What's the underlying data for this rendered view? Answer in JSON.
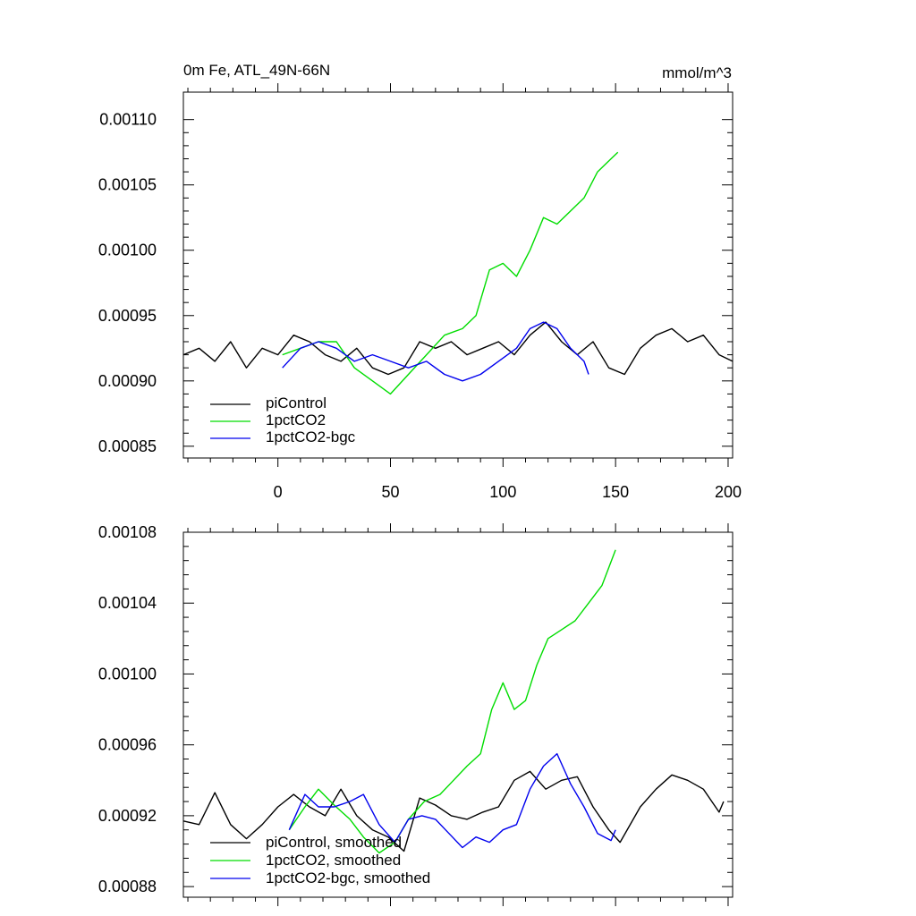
{
  "chart_data": [
    {
      "type": "line",
      "title": "0m Fe, ATL_49N-66N",
      "units": "mmol/m^3",
      "xlim": [
        -42,
        202
      ],
      "ylim": [
        0.000841,
        0.001121
      ],
      "x_ticks": [
        0,
        50,
        100,
        150,
        200
      ],
      "x_tick_labels": [
        "0",
        "50",
        "100",
        "150",
        "200"
      ],
      "y_ticks": [
        0.00085,
        0.0009,
        0.00095,
        0.001,
        0.00105,
        0.0011
      ],
      "y_tick_labels": [
        "0.00085",
        "0.00090",
        "0.00095",
        "0.00100",
        "0.00105",
        "0.00110"
      ],
      "legend": "bottom-left",
      "series": [
        {
          "name": "piControl",
          "color": "#000000",
          "x": [
            -42,
            -35,
            -28,
            -21,
            -14,
            -7,
            0,
            7,
            14,
            21,
            28,
            35,
            42,
            49,
            56,
            63,
            70,
            77,
            84,
            91,
            98,
            105,
            112,
            119,
            126,
            133,
            140,
            147,
            154,
            161,
            168,
            175,
            182,
            189,
            196,
            202
          ],
          "y": [
            0.00092,
            0.000925,
            0.000915,
            0.00093,
            0.00091,
            0.000925,
            0.00092,
            0.000935,
            0.00093,
            0.00092,
            0.000915,
            0.000925,
            0.00091,
            0.000905,
            0.00091,
            0.00093,
            0.000925,
            0.00093,
            0.00092,
            0.000925,
            0.00093,
            0.00092,
            0.000935,
            0.000945,
            0.00093,
            0.00092,
            0.00093,
            0.00091,
            0.000905,
            0.000925,
            0.000935,
            0.00094,
            0.00093,
            0.000935,
            0.00092,
            0.000915
          ]
        },
        {
          "name": "1pctCO2",
          "color": "#00dd00",
          "x": [
            2,
            10,
            18,
            26,
            34,
            42,
            50,
            58,
            66,
            74,
            82,
            88,
            94,
            100,
            106,
            112,
            118,
            124,
            130,
            136,
            142,
            148,
            151
          ],
          "y": [
            0.00092,
            0.000925,
            0.00093,
            0.00093,
            0.00091,
            0.0009,
            0.00089,
            0.000905,
            0.00092,
            0.000935,
            0.00094,
            0.00095,
            0.000985,
            0.00099,
            0.00098,
            0.001,
            0.001025,
            0.00102,
            0.00103,
            0.00104,
            0.00106,
            0.00107,
            0.001075
          ]
        },
        {
          "name": "1pctCO2-bgc",
          "color": "#0000ee",
          "x": [
            2,
            10,
            18,
            26,
            34,
            42,
            50,
            58,
            66,
            74,
            82,
            90,
            98,
            106,
            112,
            118,
            124,
            130,
            136,
            138
          ],
          "y": [
            0.00091,
            0.000925,
            0.00093,
            0.000925,
            0.000915,
            0.00092,
            0.000915,
            0.00091,
            0.000915,
            0.000905,
            0.0009,
            0.000905,
            0.000915,
            0.000925,
            0.00094,
            0.000945,
            0.00094,
            0.000925,
            0.000915,
            0.000905
          ]
        }
      ]
    },
    {
      "type": "line",
      "xlim": [
        -42,
        202
      ],
      "ylim": [
        0.000874,
        0.00108
      ],
      "x_ticks": [
        0,
        50,
        100,
        150,
        200
      ],
      "y_ticks": [
        0.00088,
        0.00092,
        0.00096,
        0.001,
        0.00104,
        0.00108
      ],
      "y_tick_labels": [
        "0.00088",
        "0.00092",
        "0.00096",
        "0.00100",
        "0.00104",
        "0.00108"
      ],
      "legend": "bottom-left",
      "series": [
        {
          "name": "piControl, smoothed",
          "color": "#000000",
          "x": [
            -42,
            -35,
            -28,
            -21,
            -14,
            -7,
            0,
            7,
            14,
            21,
            28,
            35,
            42,
            49,
            56,
            63,
            70,
            77,
            84,
            91,
            98,
            105,
            112,
            119,
            126,
            133,
            140,
            147,
            152,
            161,
            168,
            175,
            182,
            189,
            196,
            198
          ],
          "y": [
            0.000917,
            0.000915,
            0.000933,
            0.000915,
            0.000907,
            0.000915,
            0.000925,
            0.000932,
            0.000925,
            0.00092,
            0.000935,
            0.00092,
            0.000912,
            0.000908,
            0.0009,
            0.00093,
            0.000926,
            0.00092,
            0.000918,
            0.000922,
            0.000925,
            0.00094,
            0.000945,
            0.000935,
            0.00094,
            0.000942,
            0.000925,
            0.000912,
            0.000905,
            0.000925,
            0.000935,
            0.000943,
            0.00094,
            0.000935,
            0.000922,
            0.000928
          ]
        },
        {
          "name": "1pctCO2, smoothed",
          "color": "#00dd00",
          "x": [
            5,
            12,
            18,
            25,
            32,
            38,
            45,
            52,
            58,
            65,
            72,
            78,
            84,
            90,
            95,
            100,
            105,
            110,
            115,
            120,
            126,
            132,
            138,
            144,
            150
          ],
          "y": [
            0.000912,
            0.000925,
            0.000935,
            0.000926,
            0.000918,
            0.000908,
            0.000899,
            0.000905,
            0.000918,
            0.000928,
            0.000932,
            0.00094,
            0.000948,
            0.000955,
            0.00098,
            0.000995,
            0.00098,
            0.000985,
            0.001005,
            0.00102,
            0.001025,
            0.00103,
            0.00104,
            0.00105,
            0.00107
          ]
        },
        {
          "name": "1pctCO2-bgc, smoothed",
          "color": "#0000ee",
          "x": [
            5,
            12,
            18,
            25,
            32,
            38,
            45,
            52,
            58,
            64,
            70,
            76,
            82,
            88,
            94,
            100,
            106,
            112,
            118,
            124,
            130,
            136,
            142,
            148,
            150
          ],
          "y": [
            0.000912,
            0.000932,
            0.000925,
            0.000925,
            0.000928,
            0.000932,
            0.000915,
            0.000905,
            0.000918,
            0.00092,
            0.000918,
            0.00091,
            0.000902,
            0.000908,
            0.000905,
            0.000912,
            0.000915,
            0.000935,
            0.000948,
            0.000955,
            0.000938,
            0.000925,
            0.00091,
            0.000906,
            0.000912
          ]
        }
      ]
    }
  ]
}
